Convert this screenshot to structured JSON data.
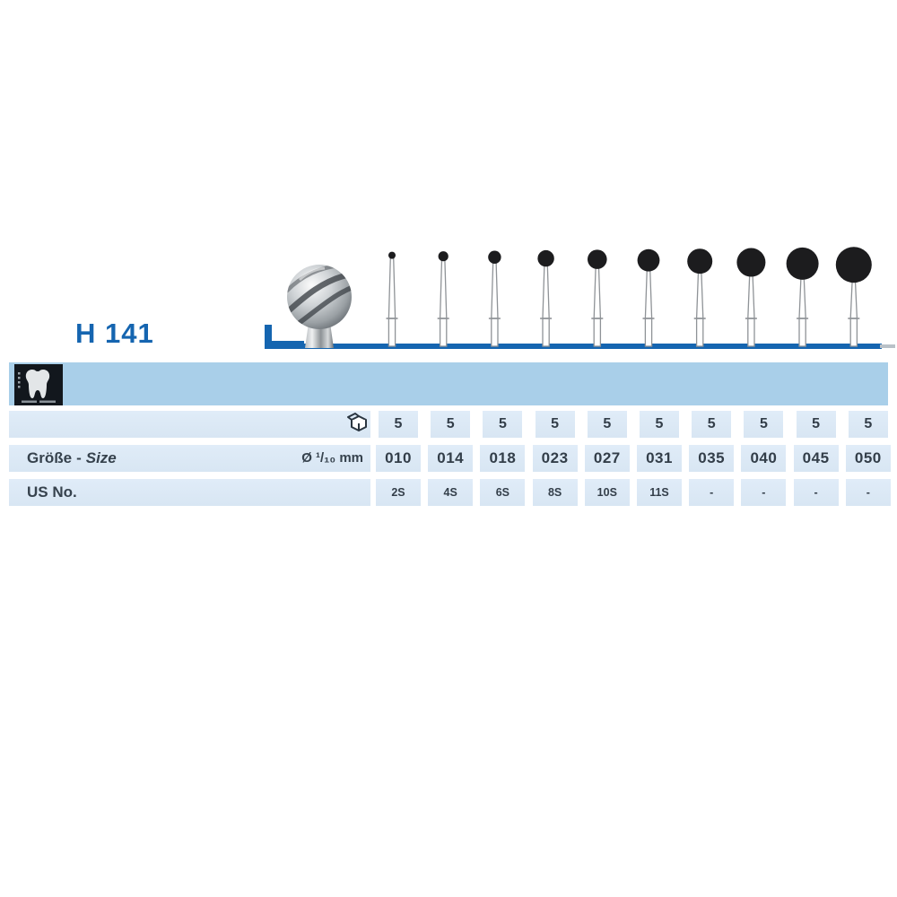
{
  "header": {
    "product_code": "H 141"
  },
  "brand": {
    "logo_icon": "tooth-pictogram-icon"
  },
  "figure": {
    "hero_icon": "round-bur-3d-rendering",
    "bur_row_icon": "bur-size-silhouettes",
    "accent_mark": "L-baseline"
  },
  "table": {
    "rows": [
      {
        "id": "pack",
        "icon": "package-icon",
        "values": [
          "5",
          "5",
          "5",
          "5",
          "5",
          "5",
          "5",
          "5",
          "5",
          "5"
        ]
      },
      {
        "id": "size",
        "label_de": "Größe",
        "separator": "-",
        "label_en": "Size",
        "unit": "Ø ¹/₁₀ mm",
        "values": [
          "010",
          "014",
          "018",
          "023",
          "027",
          "031",
          "035",
          "040",
          "045",
          "050"
        ]
      },
      {
        "id": "usno",
        "label": "US No.",
        "values": [
          "2S",
          "4S",
          "6S",
          "8S",
          "10S",
          "11S",
          "-",
          "-",
          "-",
          "-"
        ]
      }
    ]
  },
  "illustration": {
    "sizes_tenths_mm": [
      10,
      14,
      18,
      23,
      27,
      31,
      35,
      40,
      45,
      50
    ]
  },
  "colors": {
    "accent_blue": "#1565b0",
    "band_blue": "#a9cfe9",
    "cell_blue": "#dce9f4",
    "text_dark": "#36424d",
    "ball_black": "#1c1c1e"
  }
}
